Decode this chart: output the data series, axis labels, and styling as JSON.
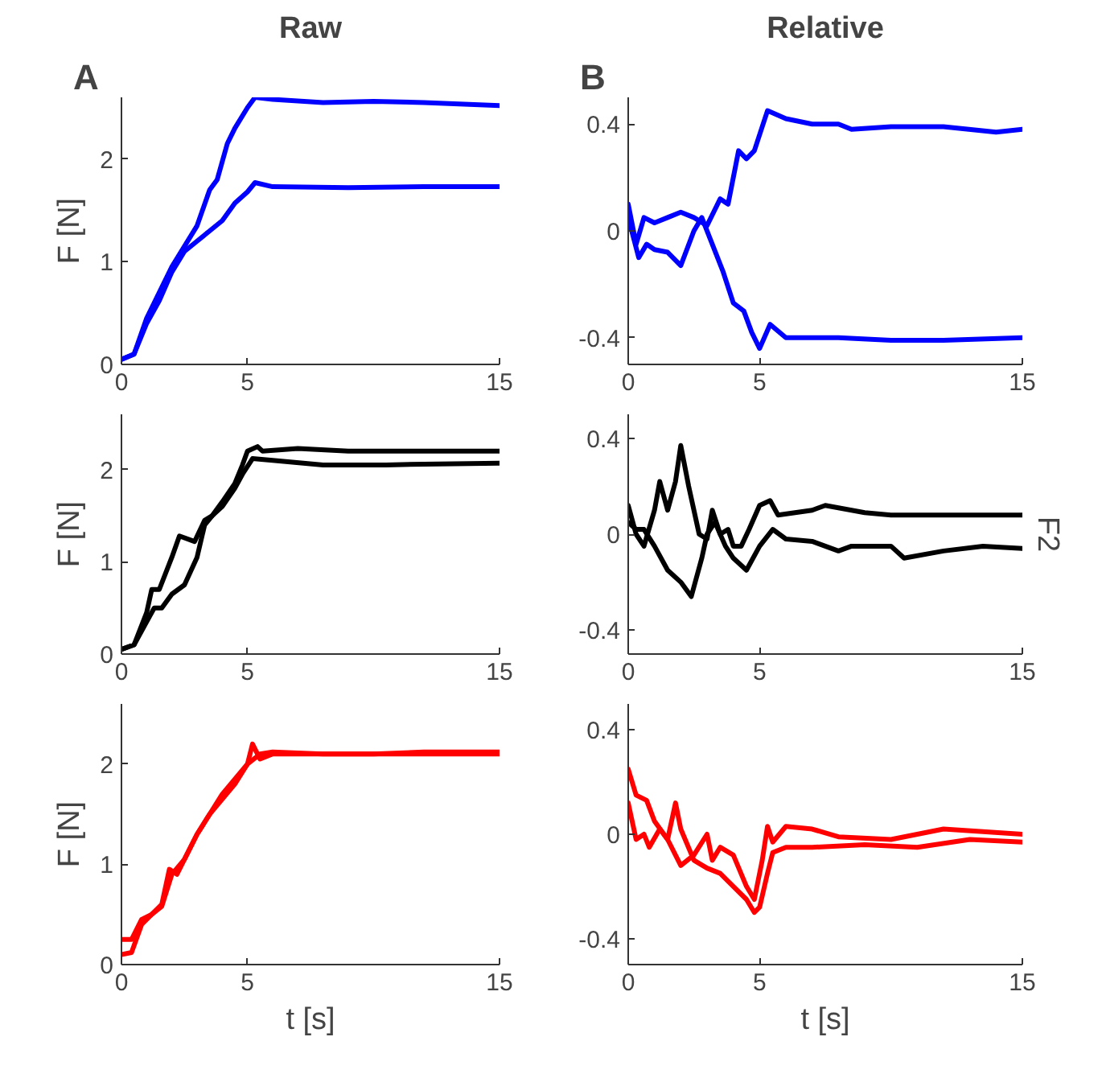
{
  "chart_data": [
    {
      "type": "line",
      "title": "Raw",
      "annotations": [
        "A"
      ],
      "ylabel": "F [N]",
      "xlim": [
        0,
        15
      ],
      "xticks": [
        0,
        5,
        15
      ],
      "ylim": [
        0,
        2.6
      ],
      "yticks": [
        0,
        1,
        2
      ],
      "series": [
        {
          "color": "#0000ff",
          "x": [
            0,
            0.5,
            1,
            1.5,
            2,
            2.5,
            3,
            3.5,
            3.8,
            4.2,
            4.5,
            5,
            5.3,
            6,
            8,
            10,
            12,
            15
          ],
          "values": [
            0.05,
            0.1,
            0.45,
            0.7,
            0.95,
            1.15,
            1.35,
            1.7,
            1.8,
            2.15,
            2.3,
            2.5,
            2.6,
            2.58,
            2.55,
            2.56,
            2.55,
            2.52
          ]
        },
        {
          "color": "#0000ff",
          "x": [
            0,
            0.5,
            1,
            1.5,
            2,
            2.5,
            3,
            3.5,
            4,
            4.5,
            5,
            5.3,
            6,
            9,
            12,
            15
          ],
          "values": [
            0.05,
            0.1,
            0.4,
            0.62,
            0.9,
            1.1,
            1.2,
            1.3,
            1.4,
            1.57,
            1.68,
            1.77,
            1.73,
            1.72,
            1.73,
            1.73
          ]
        }
      ]
    },
    {
      "type": "line",
      "title": "Relative",
      "annotations": [
        "B"
      ],
      "xlim": [
        0,
        15
      ],
      "xticks": [
        0,
        5,
        15
      ],
      "ylim": [
        -0.5,
        0.5
      ],
      "yticks": [
        -0.4,
        0,
        0.4
      ],
      "series": [
        {
          "color": "#0000ff",
          "x": [
            0,
            0.3,
            0.6,
            1,
            1.5,
            2,
            2.5,
            3,
            3.5,
            3.8,
            4.2,
            4.5,
            4.8,
            5.3,
            6,
            7,
            8,
            8.5,
            10,
            12,
            14,
            15
          ],
          "values": [
            0.1,
            -0.05,
            0.05,
            0.03,
            0.05,
            0.07,
            0.05,
            0.02,
            0.12,
            0.1,
            0.3,
            0.27,
            0.3,
            0.45,
            0.42,
            0.4,
            0.4,
            0.38,
            0.39,
            0.39,
            0.37,
            0.38
          ]
        },
        {
          "color": "#0000ff",
          "x": [
            0,
            0.4,
            0.7,
            1,
            1.5,
            2,
            2.5,
            2.8,
            3.2,
            3.6,
            4,
            4.4,
            4.7,
            5,
            5.4,
            6,
            8,
            10,
            12,
            15
          ],
          "values": [
            0.05,
            -0.1,
            -0.05,
            -0.07,
            -0.08,
            -0.13,
            0.0,
            0.05,
            -0.05,
            -0.15,
            -0.27,
            -0.3,
            -0.38,
            -0.44,
            -0.35,
            -0.4,
            -0.4,
            -0.41,
            -0.41,
            -0.4
          ]
        }
      ]
    },
    {
      "type": "line",
      "ylabel": "F [N]",
      "xlim": [
        0,
        15
      ],
      "xticks": [
        0,
        5,
        15
      ],
      "ylim": [
        0,
        2.6
      ],
      "yticks": [
        0,
        1,
        2
      ],
      "series": [
        {
          "color": "#000000",
          "x": [
            0,
            0.5,
            1,
            1.2,
            1.5,
            2,
            2.3,
            2.9,
            3.3,
            3.6,
            4,
            4.5,
            4.8,
            5,
            5.4,
            5.6,
            7,
            9,
            12,
            15
          ],
          "values": [
            0.05,
            0.1,
            0.45,
            0.7,
            0.7,
            1.05,
            1.28,
            1.22,
            1.45,
            1.5,
            1.65,
            1.85,
            2.05,
            2.2,
            2.25,
            2.2,
            2.23,
            2.2,
            2.2,
            2.2
          ]
        },
        {
          "color": "#000000",
          "x": [
            0,
            0.5,
            1,
            1.3,
            1.6,
            2,
            2.5,
            3,
            3.3,
            3.6,
            4,
            4.5,
            4.8,
            5.2,
            6,
            8,
            10.5,
            12,
            15
          ],
          "values": [
            0.05,
            0.1,
            0.35,
            0.5,
            0.5,
            0.65,
            0.75,
            1.05,
            1.4,
            1.5,
            1.6,
            1.8,
            1.95,
            2.12,
            2.1,
            2.05,
            2.05,
            2.06,
            2.07
          ]
        }
      ]
    },
    {
      "type": "line",
      "y2label": "F2",
      "xlim": [
        0,
        15
      ],
      "xticks": [
        0,
        5,
        15
      ],
      "ylim": [
        -0.5,
        0.5
      ],
      "yticks": [
        -0.4,
        0,
        0.4
      ],
      "series": [
        {
          "color": "#000000",
          "x": [
            0,
            0.3,
            0.6,
            1,
            1.2,
            1.5,
            1.8,
            2,
            2.3,
            2.7,
            3,
            3.2,
            3.5,
            3.8,
            4,
            4.3,
            4.6,
            5,
            5.4,
            5.7,
            7,
            7.5,
            9,
            10,
            12,
            15
          ],
          "values": [
            0.12,
            0.0,
            -0.05,
            0.1,
            0.22,
            0.1,
            0.22,
            0.37,
            0.2,
            0.0,
            -0.02,
            0.1,
            0.0,
            0.02,
            -0.05,
            -0.05,
            0.02,
            0.12,
            0.14,
            0.08,
            0.1,
            0.12,
            0.09,
            0.08,
            0.08,
            0.08
          ]
        },
        {
          "color": "#000000",
          "x": [
            0,
            0.3,
            0.6,
            1,
            1.5,
            2,
            2.4,
            2.8,
            3,
            3.3,
            3.7,
            4,
            4.5,
            5,
            5.5,
            6,
            7,
            8,
            8.5,
            10,
            10.5,
            12,
            13.5,
            15
          ],
          "values": [
            0.05,
            0.02,
            0.02,
            -0.05,
            -0.15,
            -0.2,
            -0.26,
            -0.1,
            0.0,
            0.05,
            -0.05,
            -0.1,
            -0.15,
            -0.05,
            0.02,
            -0.02,
            -0.03,
            -0.07,
            -0.05,
            -0.05,
            -0.1,
            -0.07,
            -0.05,
            -0.06
          ]
        }
      ]
    },
    {
      "type": "line",
      "ylabel": "F [N]",
      "xlabel": "t [s]",
      "xlim": [
        0,
        15
      ],
      "xticks": [
        0,
        5,
        15
      ],
      "ylim": [
        0,
        2.6
      ],
      "yticks": [
        0,
        1,
        2
      ],
      "series": [
        {
          "color": "#ff0000",
          "x": [
            0,
            0.4,
            0.8,
            1.2,
            1.6,
            1.9,
            2.2,
            2.8,
            3,
            3.5,
            4,
            4.5,
            5,
            5.2,
            5.5,
            6,
            8,
            10,
            12,
            15
          ],
          "values": [
            0.25,
            0.25,
            0.45,
            0.5,
            0.6,
            0.95,
            0.9,
            1.2,
            1.3,
            1.5,
            1.65,
            1.8,
            2.0,
            2.2,
            2.05,
            2.1,
            2.1,
            2.1,
            2.1,
            2.1
          ]
        },
        {
          "color": "#ff0000",
          "x": [
            0,
            0.4,
            0.8,
            1.2,
            1.6,
            2,
            2.5,
            3,
            3.5,
            4,
            4.5,
            5,
            5.5,
            6,
            8,
            10,
            12,
            15
          ],
          "values": [
            0.1,
            0.12,
            0.4,
            0.5,
            0.58,
            0.9,
            1.05,
            1.3,
            1.5,
            1.7,
            1.85,
            2.0,
            2.1,
            2.12,
            2.1,
            2.1,
            2.12,
            2.12
          ]
        }
      ]
    },
    {
      "type": "line",
      "xlabel": "t [s]",
      "xlim": [
        0,
        15
      ],
      "xticks": [
        0,
        5,
        15
      ],
      "ylim": [
        -0.5,
        0.5
      ],
      "yticks": [
        -0.4,
        0,
        0.4
      ],
      "series": [
        {
          "color": "#ff0000",
          "x": [
            0,
            0.3,
            0.7,
            1,
            1.5,
            1.8,
            2,
            2.5,
            3,
            3.5,
            4,
            4.5,
            4.8,
            5,
            5.3,
            5.5,
            6,
            7,
            9,
            11,
            13,
            15
          ],
          "values": [
            0.25,
            0.15,
            0.13,
            0.05,
            -0.02,
            0.12,
            0.02,
            -0.1,
            -0.13,
            -0.15,
            -0.2,
            -0.25,
            -0.3,
            -0.28,
            -0.15,
            -0.07,
            -0.05,
            -0.05,
            -0.04,
            -0.05,
            -0.02,
            -0.03
          ]
        },
        {
          "color": "#ff0000",
          "x": [
            0,
            0.3,
            0.6,
            0.8,
            1.2,
            1.5,
            2,
            2.5,
            3,
            3.2,
            3.5,
            4,
            4.5,
            4.8,
            5.1,
            5.3,
            5.5,
            6,
            7,
            8,
            10,
            12,
            15
          ],
          "values": [
            0.12,
            -0.02,
            0.0,
            -0.05,
            0.02,
            -0.02,
            -0.12,
            -0.08,
            0.0,
            -0.1,
            -0.05,
            -0.08,
            -0.2,
            -0.25,
            -0.1,
            0.03,
            -0.03,
            0.03,
            0.02,
            -0.01,
            -0.02,
            0.02,
            0.0
          ]
        }
      ]
    }
  ]
}
